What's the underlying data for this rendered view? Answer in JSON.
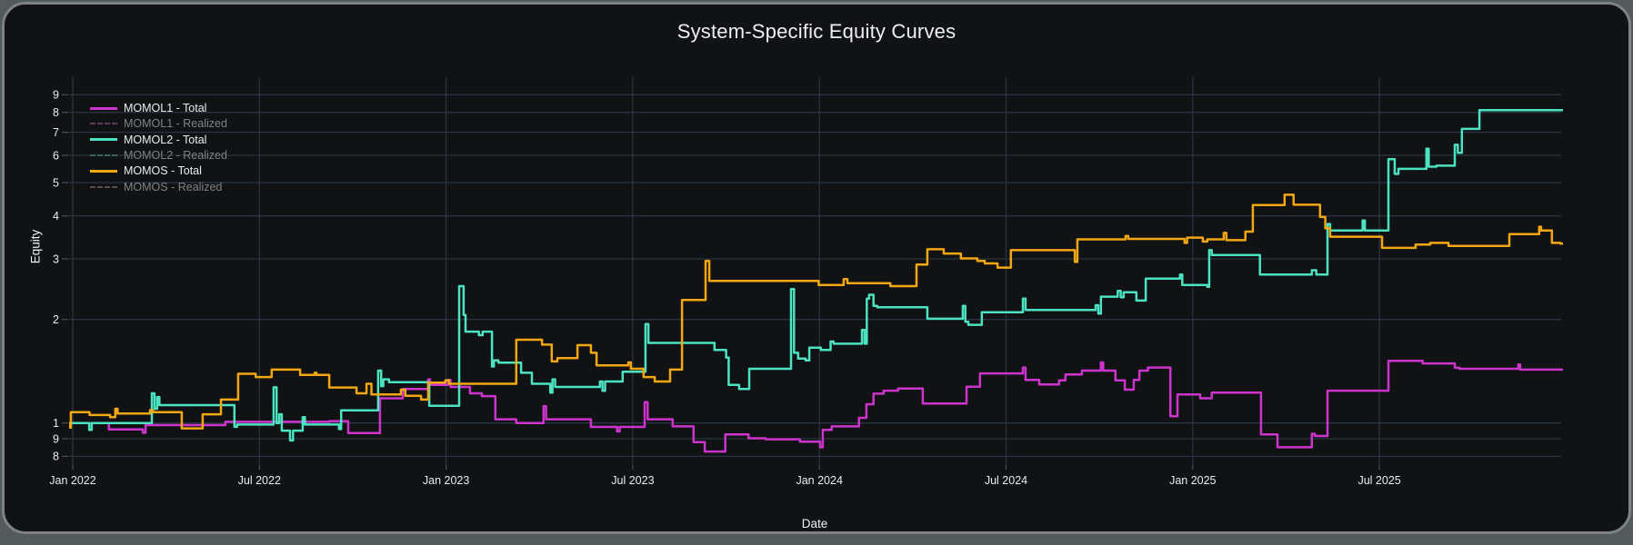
{
  "title": "System-Specific Equity Curves",
  "y_axis": {
    "label": "Equity",
    "ticks": [
      {
        "value": 9,
        "label": "9"
      },
      {
        "value": 8,
        "label": "8"
      },
      {
        "value": 7,
        "label": "7"
      },
      {
        "value": 6,
        "label": "6"
      },
      {
        "value": 5,
        "label": "5"
      },
      {
        "value": 4,
        "label": "4"
      },
      {
        "value": 3,
        "label": "3"
      },
      {
        "value": 2,
        "label": "2"
      },
      {
        "value": 1,
        "label": "1"
      },
      {
        "value": 0.9,
        "label": "9"
      },
      {
        "value": 0.8,
        "label": "8"
      }
    ]
  },
  "x_axis": {
    "label": "Date",
    "ticks": [
      {
        "year": 2022.0,
        "label": "Jan 2022"
      },
      {
        "year": 2022.5,
        "label": "Jul 2022"
      },
      {
        "year": 2023.0,
        "label": "Jan 2023"
      },
      {
        "year": 2023.5,
        "label": "Jul 2023"
      },
      {
        "year": 2024.0,
        "label": "Jan 2024"
      },
      {
        "year": 2024.5,
        "label": "Jul 2024"
      },
      {
        "year": 2025.0,
        "label": "Jan 2025"
      },
      {
        "year": 2025.5,
        "label": "Jul 2025"
      }
    ]
  },
  "legend": {
    "items": [
      {
        "label": "MOMOL1 - Total",
        "color": "#cd34cd",
        "dash": "solid",
        "active": true
      },
      {
        "label": "MOMOL1 - Realized",
        "color": "#5a3f5c",
        "dash": "dash",
        "active": false
      },
      {
        "label": "MOMOL2 - Total",
        "color": "#4be3c1",
        "dash": "solid",
        "active": true
      },
      {
        "label": "MOMOL2 - Realized",
        "color": "#38645c",
        "dash": "dash",
        "active": false
      },
      {
        "label": "MOMOS - Total",
        "color": "#f3a712",
        "dash": "solid",
        "active": true
      },
      {
        "label": "MOMOS - Realized",
        "color": "#5e4a55",
        "dash": "dash",
        "active": false
      }
    ]
  },
  "theme": {
    "plot_bg": "#111214",
    "grid_color": "#283442",
    "tick_dash_color": "#46505c",
    "tick_label_color": "#e9ecf2",
    "title_color": "#edeff3",
    "page_bg": "#525a5c",
    "card_border": "#7e8285"
  },
  "chart_data": {
    "type": "line",
    "step_mode": "hv",
    "y_scale": "log",
    "title": "System-Specific Equity Curves",
    "xlabel": "Date",
    "ylabel": "Equity",
    "x_unit": "decimal_year",
    "xlim": [
      2021.985,
      2025.99
    ],
    "ylim": [
      0.755,
      10.1
    ],
    "grid": true,
    "legend_position": "top-left-inside",
    "hidden_series": [
      "MOMOL1 - Realized",
      "MOMOL2 - Realized",
      "MOMOS - Realized"
    ],
    "series": [
      {
        "name": "MOMOL1 - Total",
        "color": "#cd34cd",
        "points": [
          [
            2021.988,
            1.0
          ],
          [
            2022.097,
            0.958
          ],
          [
            2022.188,
            0.937
          ],
          [
            2022.195,
            0.986
          ],
          [
            2022.409,
            1.008
          ],
          [
            2022.687,
            1.013
          ],
          [
            2022.738,
            0.935
          ],
          [
            2022.823,
            1.18
          ],
          [
            2022.884,
            1.255
          ],
          [
            2022.952,
            1.34
          ],
          [
            2022.957,
            1.29
          ],
          [
            2023.005,
            1.335
          ],
          [
            2023.012,
            1.273
          ],
          [
            2023.064,
            1.22
          ],
          [
            2023.096,
            1.197
          ],
          [
            2023.132,
            1.025
          ],
          [
            2023.188,
            1.0
          ],
          [
            2023.261,
            1.12
          ],
          [
            2023.268,
            1.025
          ],
          [
            2023.388,
            0.974
          ],
          [
            2023.458,
            0.945
          ],
          [
            2023.465,
            0.974
          ],
          [
            2023.532,
            1.15
          ],
          [
            2023.54,
            1.025
          ],
          [
            2023.607,
            0.978
          ],
          [
            2023.663,
            0.88
          ],
          [
            2023.693,
            0.826
          ],
          [
            2023.748,
            0.926
          ],
          [
            2023.81,
            0.903
          ],
          [
            2023.856,
            0.897
          ],
          [
            2023.948,
            0.883
          ],
          [
            2024.002,
            0.85
          ],
          [
            2024.009,
            0.955
          ],
          [
            2024.033,
            0.978
          ],
          [
            2024.106,
            1.035
          ],
          [
            2024.126,
            1.134
          ],
          [
            2024.145,
            1.217
          ],
          [
            2024.172,
            1.242
          ],
          [
            2024.211,
            1.26
          ],
          [
            2024.277,
            1.14
          ],
          [
            2024.394,
            1.275
          ],
          [
            2024.43,
            1.394
          ],
          [
            2024.545,
            1.45
          ],
          [
            2024.552,
            1.335
          ],
          [
            2024.589,
            1.295
          ],
          [
            2024.642,
            1.33
          ],
          [
            2024.659,
            1.384
          ],
          [
            2024.703,
            1.42
          ],
          [
            2024.754,
            1.5
          ],
          [
            2024.76,
            1.42
          ],
          [
            2024.793,
            1.33
          ],
          [
            2024.818,
            1.25
          ],
          [
            2024.842,
            1.335
          ],
          [
            2024.857,
            1.42
          ],
          [
            2024.88,
            1.45
          ],
          [
            2024.94,
            1.046
          ],
          [
            2024.959,
            1.21
          ],
          [
            2025.02,
            1.18
          ],
          [
            2025.051,
            1.225
          ],
          [
            2025.183,
            0.926
          ],
          [
            2025.227,
            0.85
          ],
          [
            2025.319,
            0.93
          ],
          [
            2025.327,
            0.917
          ],
          [
            2025.361,
            1.242
          ],
          [
            2025.524,
            1.516
          ],
          [
            2025.616,
            1.49
          ],
          [
            2025.702,
            1.447
          ],
          [
            2025.714,
            1.438
          ],
          [
            2025.872,
            1.48
          ],
          [
            2025.877,
            1.43
          ],
          [
            2025.985,
            1.43
          ]
        ]
      },
      {
        "name": "MOMOL2 - Total",
        "color": "#4be3c1",
        "points": [
          [
            2021.988,
            1.0
          ],
          [
            2022.044,
            0.955
          ],
          [
            2022.051,
            1.0
          ],
          [
            2022.212,
            1.22
          ],
          [
            2022.219,
            1.1
          ],
          [
            2022.226,
            1.19
          ],
          [
            2022.232,
            1.127
          ],
          [
            2022.429,
            1.127
          ],
          [
            2022.433,
            0.975
          ],
          [
            2022.44,
            0.99
          ],
          [
            2022.538,
            1.27
          ],
          [
            2022.546,
            1.0
          ],
          [
            2022.553,
            1.06
          ],
          [
            2022.56,
            0.95
          ],
          [
            2022.582,
            0.89
          ],
          [
            2022.59,
            0.95
          ],
          [
            2022.616,
            1.04
          ],
          [
            2022.622,
            0.99
          ],
          [
            2022.713,
            0.96
          ],
          [
            2022.719,
            1.089
          ],
          [
            2022.818,
            1.42
          ],
          [
            2022.826,
            1.28
          ],
          [
            2022.832,
            1.34
          ],
          [
            2022.847,
            1.315
          ],
          [
            2022.955,
            1.122
          ],
          [
            2023.035,
            2.5
          ],
          [
            2023.047,
            2.06
          ],
          [
            2023.052,
            1.844
          ],
          [
            2023.088,
            1.8
          ],
          [
            2023.098,
            1.844
          ],
          [
            2023.123,
            1.46
          ],
          [
            2023.128,
            1.52
          ],
          [
            2023.14,
            1.497
          ],
          [
            2023.201,
            1.4
          ],
          [
            2023.23,
            1.3
          ],
          [
            2023.279,
            1.225
          ],
          [
            2023.285,
            1.34
          ],
          [
            2023.292,
            1.273
          ],
          [
            2023.412,
            1.32
          ],
          [
            2023.419,
            1.24
          ],
          [
            2023.426,
            1.32
          ],
          [
            2023.473,
            1.41
          ],
          [
            2023.534,
            1.94
          ],
          [
            2023.542,
            1.71
          ],
          [
            2023.719,
            1.63
          ],
          [
            2023.75,
            1.55
          ],
          [
            2023.757,
            1.29
          ],
          [
            2023.785,
            1.255
          ],
          [
            2023.812,
            1.438
          ],
          [
            2023.924,
            2.45
          ],
          [
            2023.932,
            1.6
          ],
          [
            2023.943,
            1.54
          ],
          [
            2023.963,
            1.52
          ],
          [
            2023.973,
            1.656
          ],
          [
            2024.004,
            1.63
          ],
          [
            2024.03,
            1.725
          ],
          [
            2024.038,
            1.7
          ],
          [
            2024.114,
            1.865
          ],
          [
            2024.121,
            1.7
          ],
          [
            2024.127,
            2.3
          ],
          [
            2024.133,
            2.36
          ],
          [
            2024.145,
            2.19
          ],
          [
            2024.155,
            2.17
          ],
          [
            2024.289,
            2.01
          ],
          [
            2024.384,
            2.19
          ],
          [
            2024.391,
            1.97
          ],
          [
            2024.399,
            1.93
          ],
          [
            2024.435,
            2.1
          ],
          [
            2024.545,
            2.3
          ],
          [
            2024.552,
            2.13
          ],
          [
            2024.74,
            2.2
          ],
          [
            2024.747,
            2.08
          ],
          [
            2024.754,
            2.33
          ],
          [
            2024.799,
            2.42
          ],
          [
            2024.807,
            2.32
          ],
          [
            2024.815,
            2.4
          ],
          [
            2024.849,
            2.27
          ],
          [
            2024.874,
            2.63
          ],
          [
            2024.966,
            2.7
          ],
          [
            2024.972,
            2.52
          ],
          [
            2025.039,
            2.49
          ],
          [
            2025.044,
            3.18
          ],
          [
            2025.051,
            3.08
          ],
          [
            2025.18,
            2.7
          ],
          [
            2025.319,
            2.78
          ],
          [
            2025.331,
            2.7
          ],
          [
            2025.361,
            3.79
          ],
          [
            2025.368,
            3.63
          ],
          [
            2025.455,
            3.88
          ],
          [
            2025.461,
            3.63
          ],
          [
            2025.524,
            5.85
          ],
          [
            2025.541,
            5.3
          ],
          [
            2025.551,
            5.48
          ],
          [
            2025.626,
            6.27
          ],
          [
            2025.632,
            5.56
          ],
          [
            2025.653,
            5.6
          ],
          [
            2025.702,
            6.44
          ],
          [
            2025.71,
            6.1
          ],
          [
            2025.721,
            7.16
          ],
          [
            2025.768,
            8.12
          ],
          [
            2025.985,
            8.12
          ]
        ]
      },
      {
        "name": "MOMOS - Total",
        "color": "#f3a712",
        "points": [
          [
            2021.988,
            1.0
          ],
          [
            2021.99,
            0.97
          ],
          [
            2021.995,
            1.075
          ],
          [
            2022.045,
            1.055
          ],
          [
            2022.1,
            1.04
          ],
          [
            2022.114,
            1.1
          ],
          [
            2022.12,
            1.065
          ],
          [
            2022.207,
            1.09
          ],
          [
            2022.215,
            1.075
          ],
          [
            2022.292,
            0.965
          ],
          [
            2022.348,
            1.06
          ],
          [
            2022.397,
            1.17
          ],
          [
            2022.443,
            1.39
          ],
          [
            2022.49,
            1.36
          ],
          [
            2022.533,
            1.43
          ],
          [
            2022.609,
            1.38
          ],
          [
            2022.648,
            1.4
          ],
          [
            2022.653,
            1.38
          ],
          [
            2022.687,
            1.268
          ],
          [
            2022.76,
            1.22
          ],
          [
            2022.787,
            1.3
          ],
          [
            2022.8,
            1.21
          ],
          [
            2022.879,
            1.25
          ],
          [
            2022.891,
            1.2
          ],
          [
            2022.933,
            1.17
          ],
          [
            2022.952,
            1.31
          ],
          [
            2022.998,
            1.33
          ],
          [
            2023.008,
            1.3
          ],
          [
            2023.188,
            1.746
          ],
          [
            2023.257,
            1.69
          ],
          [
            2023.283,
            1.51
          ],
          [
            2023.298,
            1.545
          ],
          [
            2023.352,
            1.684
          ],
          [
            2023.388,
            1.6
          ],
          [
            2023.403,
            1.47
          ],
          [
            2023.488,
            1.5
          ],
          [
            2023.495,
            1.438
          ],
          [
            2023.529,
            1.36
          ],
          [
            2023.559,
            1.32
          ],
          [
            2023.6,
            1.43
          ],
          [
            2023.632,
            2.28
          ],
          [
            2023.695,
            2.96
          ],
          [
            2023.705,
            2.59
          ],
          [
            2023.998,
            2.52
          ],
          [
            2024.065,
            2.62
          ],
          [
            2024.075,
            2.55
          ],
          [
            2024.19,
            2.5
          ],
          [
            2024.26,
            2.89
          ],
          [
            2024.289,
            3.2
          ],
          [
            2024.333,
            3.11
          ],
          [
            2024.379,
            3.01
          ],
          [
            2024.423,
            2.96
          ],
          [
            2024.443,
            2.91
          ],
          [
            2024.477,
            2.83
          ],
          [
            2024.513,
            3.18
          ],
          [
            2024.684,
            2.94
          ],
          [
            2024.691,
            3.42
          ],
          [
            2024.82,
            3.5
          ],
          [
            2024.827,
            3.43
          ],
          [
            2024.978,
            3.34
          ],
          [
            2024.985,
            3.46
          ],
          [
            2025.027,
            3.37
          ],
          [
            2025.039,
            3.42
          ],
          [
            2025.083,
            3.57
          ],
          [
            2025.09,
            3.4
          ],
          [
            2025.141,
            3.6
          ],
          [
            2025.161,
            4.3
          ],
          [
            2025.246,
            4.61
          ],
          [
            2025.27,
            4.31
          ],
          [
            2025.341,
            3.97
          ],
          [
            2025.355,
            3.68
          ],
          [
            2025.368,
            3.48
          ],
          [
            2025.507,
            3.23
          ],
          [
            2025.597,
            3.3
          ],
          [
            2025.636,
            3.34
          ],
          [
            2025.685,
            3.27
          ],
          [
            2025.848,
            3.54
          ],
          [
            2025.928,
            3.72
          ],
          [
            2025.933,
            3.63
          ],
          [
            2025.962,
            3.34
          ],
          [
            2025.985,
            3.32
          ]
        ]
      }
    ]
  }
}
